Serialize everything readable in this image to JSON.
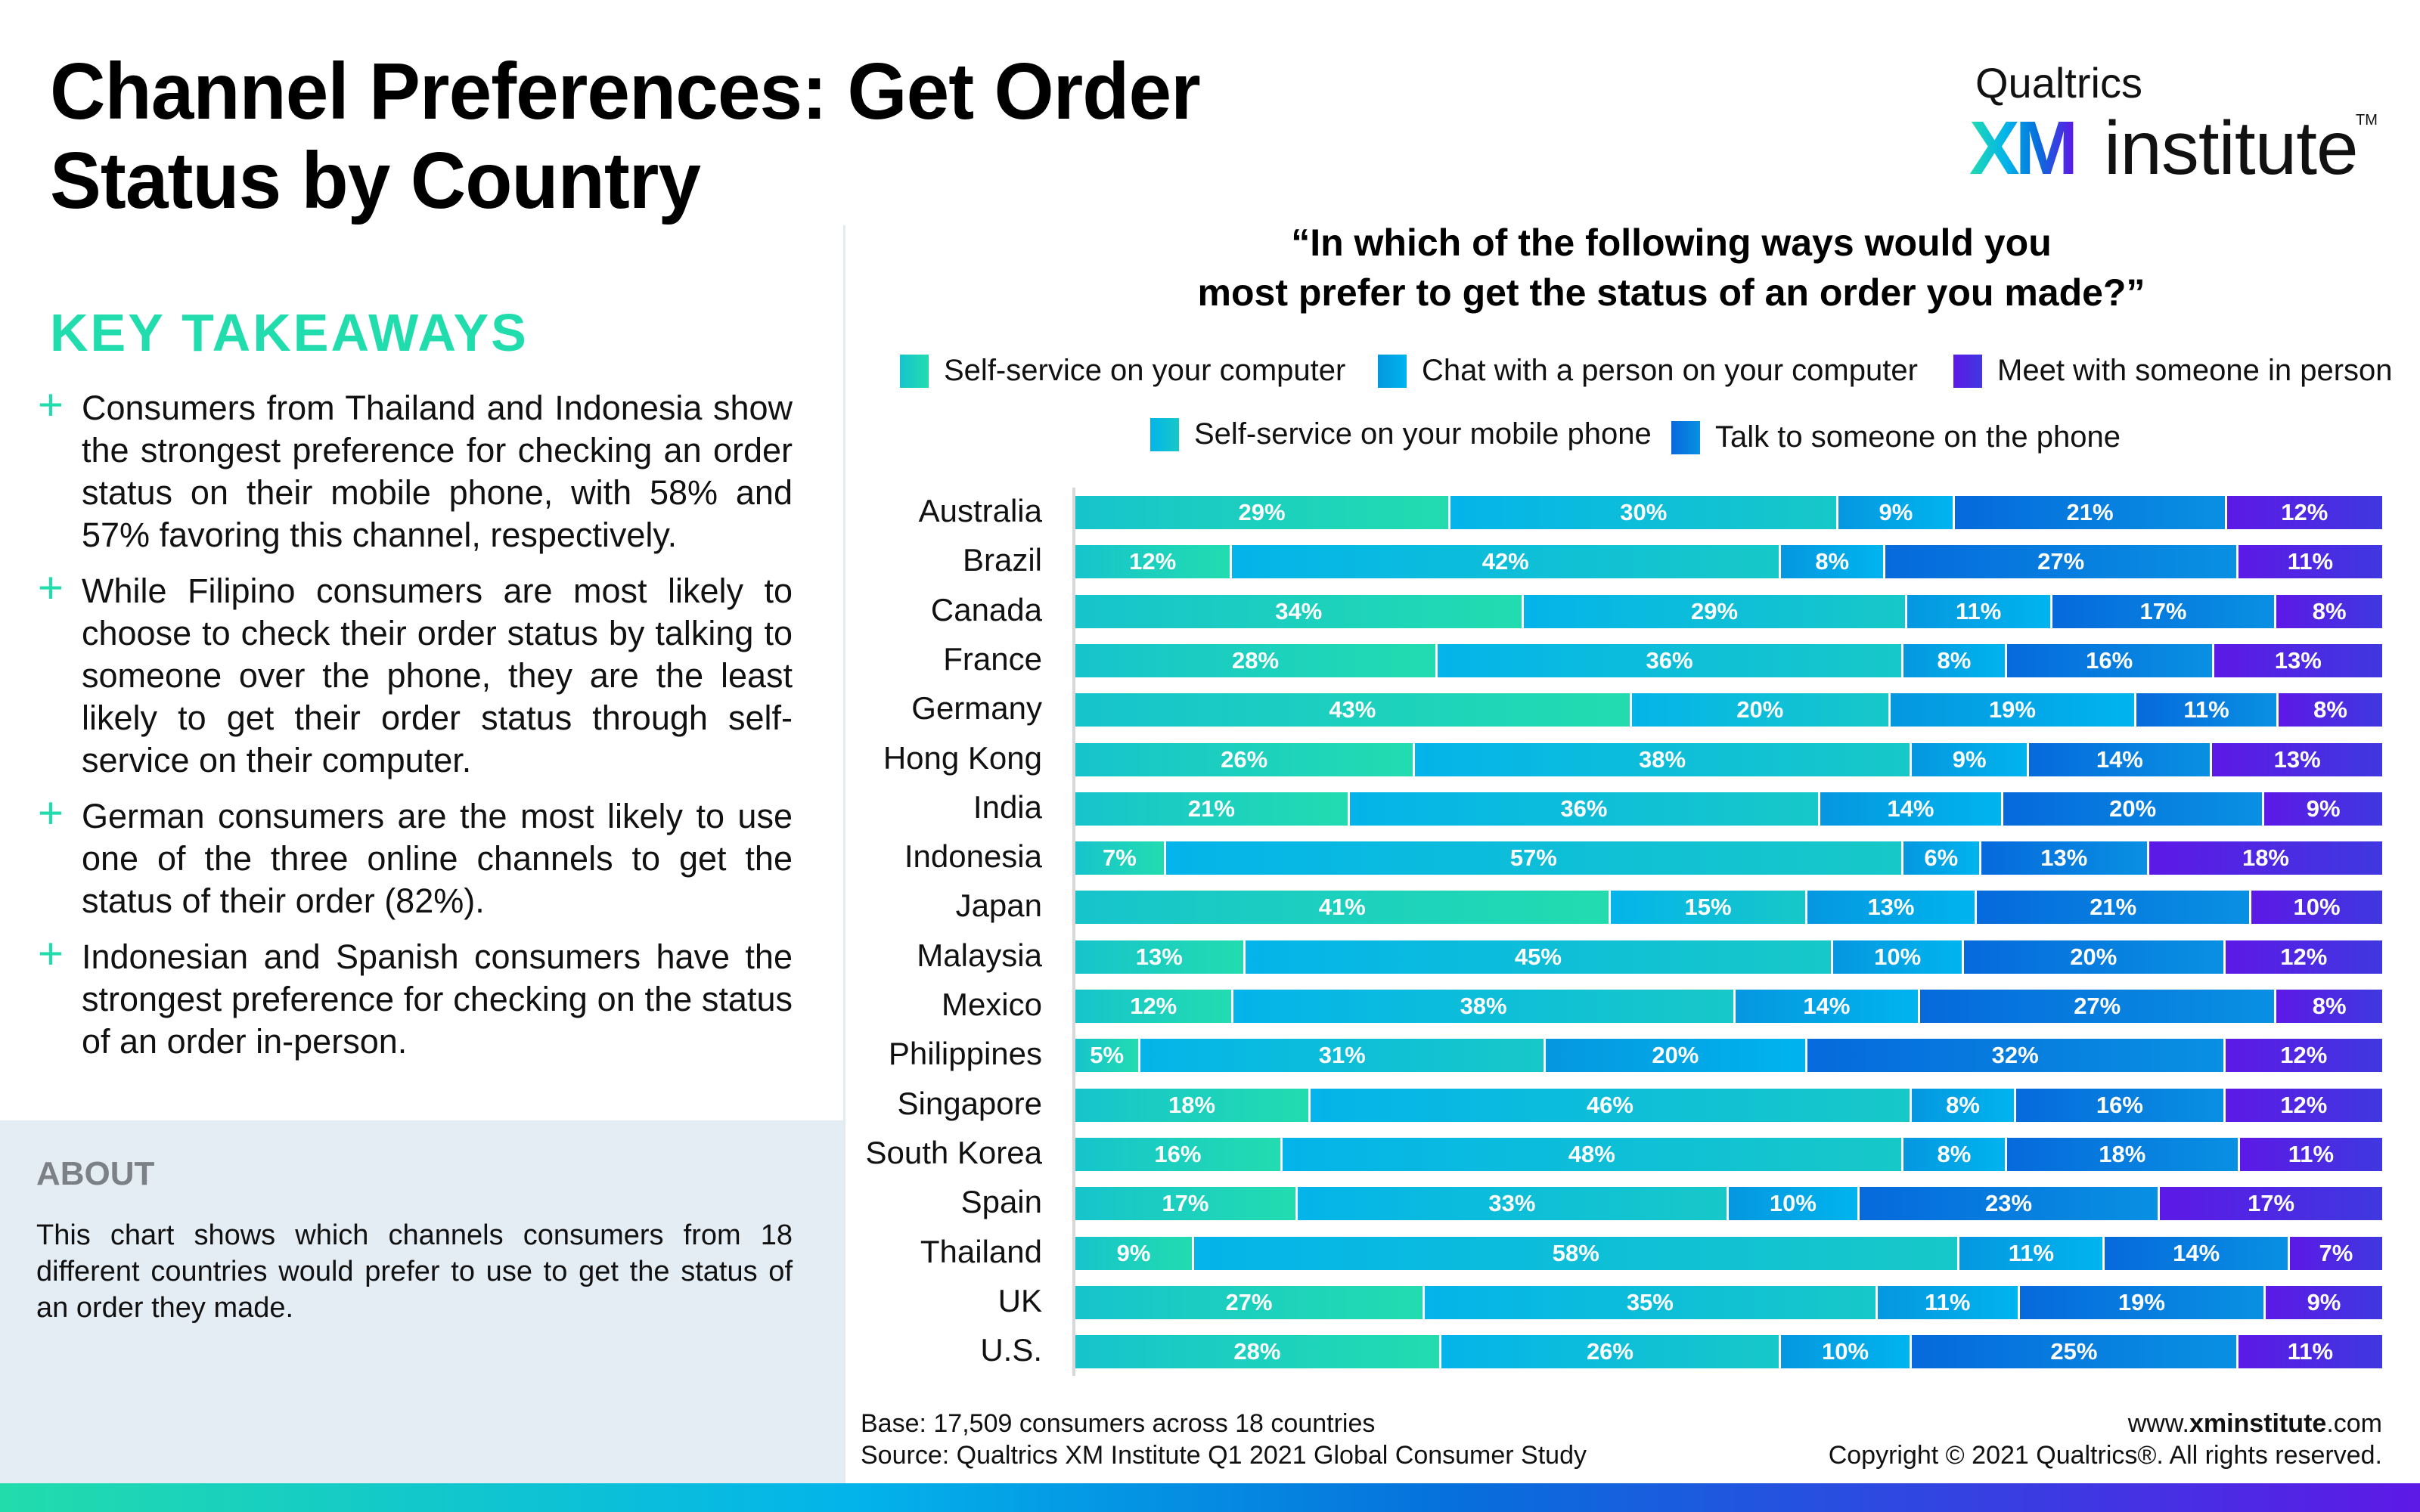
{
  "header": {
    "title": "Channel Preferences: Get Order Status by Country",
    "logo": {
      "brand": "Qualtrics",
      "mark": "XM",
      "word": "institute",
      "trademark": "TM"
    }
  },
  "left_panel": {
    "heading": "KEY TAKEAWAYS",
    "bullet_icon": "plus-icon",
    "bullet_glyph": "+",
    "takeaways": [
      "Consumers from Thailand and Indonesia show the strongest preference for checking an order status on their mobile phone, with 58% and 57% favoring this channel, respectively.",
      "While Filipino consumers are most likely to choose to check their order status by talking to someone over the phone, they are the least likely to get their order status through self-service on their computer.",
      "German consumers are the most likely to use one of the three online channels to get the status of their order (82%).",
      "Indonesian and Spanish consumers have the strongest preference for checking on the status of an order in-person."
    ],
    "about": {
      "heading": "ABOUT",
      "text": "This chart shows which channels consumers from 18 different countries would prefer to use to get the status of an order they made."
    }
  },
  "footer": {
    "base": "Base: 17,509 consumers across 18 countries",
    "source": "Source: Qualtrics XM Institute Q1 2021 Global Consumer Study",
    "url_prefix": "www.",
    "url_bold": "xminstitute",
    "url_suffix": ".com",
    "copyright": "Copyright © 2021 Qualtrics®. All rights reserved."
  },
  "colors": {
    "accent_green": "#21dcac",
    "self_service_computer": [
      "#16c4cc",
      "#22dcb0"
    ],
    "self_service_mobile": [
      "#04b4ea",
      "#17c8c8"
    ],
    "chat_computer": [
      "#0597e0",
      "#00b4ee"
    ],
    "talk_phone": [
      "#066adc",
      "#0890e2"
    ],
    "meet_in_person": [
      "#5d19e6",
      "#3f38e0"
    ]
  },
  "chart_data": {
    "type": "bar",
    "orientation": "horizontal",
    "stacked": true,
    "title": "“In which of the following ways would you most prefer to get the status of an order you made?”",
    "title_lines": [
      "“In which of the following ways would you",
      "most prefer to get the status of an order you made?”"
    ],
    "xlabel": "",
    "ylabel": "",
    "xlim": [
      0,
      100
    ],
    "grid": false,
    "legend_position": "top",
    "legend": [
      {
        "name": "Self-service on your computer",
        "key": "self_service_computer"
      },
      {
        "name": "Chat with a person on your computer",
        "key": "chat_computer"
      },
      {
        "name": "Meet with someone in person",
        "key": "meet_in_person"
      },
      {
        "name": "Self-service on your mobile phone",
        "key": "self_service_mobile"
      },
      {
        "name": "Talk to someone on the phone",
        "key": "talk_phone"
      }
    ],
    "categories": [
      "Australia",
      "Brazil",
      "Canada",
      "France",
      "Germany",
      "Hong Kong",
      "India",
      "Indonesia",
      "Japan",
      "Malaysia",
      "Mexico",
      "Philippines",
      "Singapore",
      "South Korea",
      "Spain",
      "Thailand",
      "UK",
      "U.S."
    ],
    "series": [
      {
        "name": "Self-service on your computer",
        "key": "self_service_computer",
        "values": [
          29,
          12,
          34,
          28,
          43,
          26,
          21,
          7,
          41,
          13,
          12,
          5,
          18,
          16,
          17,
          9,
          27,
          28
        ]
      },
      {
        "name": "Self-service on your mobile phone",
        "key": "self_service_mobile",
        "values": [
          30,
          42,
          29,
          36,
          20,
          38,
          36,
          57,
          15,
          45,
          38,
          31,
          46,
          48,
          33,
          58,
          35,
          26
        ]
      },
      {
        "name": "Chat with a person on your computer",
        "key": "chat_computer",
        "values": [
          9,
          8,
          11,
          8,
          19,
          9,
          14,
          6,
          13,
          10,
          14,
          20,
          8,
          8,
          10,
          11,
          11,
          10
        ]
      },
      {
        "name": "Talk to someone on the phone",
        "key": "talk_phone",
        "values": [
          21,
          27,
          17,
          16,
          11,
          14,
          20,
          13,
          21,
          20,
          27,
          32,
          16,
          18,
          23,
          14,
          19,
          25
        ]
      },
      {
        "name": "Meet with someone in person",
        "key": "meet_in_person",
        "values": [
          12,
          11,
          8,
          13,
          8,
          13,
          9,
          18,
          10,
          12,
          8,
          12,
          12,
          11,
          17,
          7,
          9,
          11
        ]
      }
    ],
    "value_suffix": "%"
  }
}
